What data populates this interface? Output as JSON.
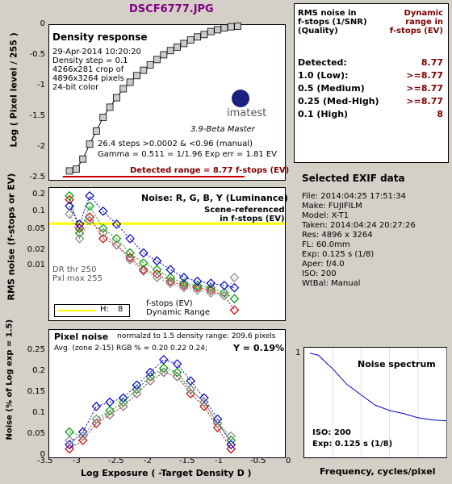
{
  "colors": {
    "accent": "#800080",
    "red": "#cc0000",
    "green": "#009900",
    "blue": "#0000cc",
    "gray": "#888888",
    "yellow": "#ffff00"
  },
  "header": {
    "title": "DSCF6777.JPG"
  },
  "density_panel": {
    "title": "Density response",
    "info": [
      "29-Apr-2014 10:20:20",
      "Density step = 0.1",
      "4266x281 crop of",
      "4896x3264 pixels",
      "24-bit color"
    ],
    "logo": "imatest",
    "version": "3.9-Beta  Master",
    "steps": "26.4 steps >0.0002 & <0.96 (manual)",
    "gamma": "Gamma = 0.511 = 1/1.96  Exp err = 1.81 EV",
    "detected": "Detected range = 8.77 f-stops (EV)",
    "ylabel": "Log ( Pixel level / 255 )",
    "yticks": [
      "0",
      "-0.5",
      "-1",
      "-1.5",
      "-2",
      "-2.5"
    ]
  },
  "summary": {
    "head_left": "RMS noise in\nf-stops (1/SNR)\n(Quality)",
    "head_right": "Dynamic\nrange in\nf-stops (EV)",
    "rows": [
      {
        "label": "Detected:",
        "value": "8.77"
      },
      {
        "label": "1.0   (Low):",
        "value": ">=8.77"
      },
      {
        "label": "0.5   (Medium)",
        "value": ">=8.77"
      },
      {
        "label": "0.25 (Med-High)",
        "value": ">=8.77"
      },
      {
        "label": "0.1   (High)",
        "value": "8"
      }
    ]
  },
  "noise_panel": {
    "title": "Noise: R, G, B, Y (Luminance)",
    "scene": "Scene-referenced\nin f-stops (EV)",
    "dr": "DR thr 250\nPxl max 255",
    "legend_h": "H:",
    "legend_val": "8",
    "legend_txt": "f-stops (EV)\nDynamic Range",
    "ylabel": "RMS noise (f-stops or EV)",
    "yticks": [
      "0.2",
      "0.1",
      "0.05",
      "0.02",
      "0.01"
    ]
  },
  "exif": {
    "title": "Selected EXIF data",
    "rows": [
      "File:  2014:04:25 17:51:34",
      "Make: FUJIFILM",
      "Model: X-T1",
      "Taken: 2014:04:24 20:27:26",
      "Res:   4896 x 3264",
      "FL:  60.0mm",
      "Exp:   0.125 s   (1/8)",
      "Aper:  f/4.0",
      "ISO:   200",
      "WtBal: Manual"
    ]
  },
  "pixel_panel": {
    "title": "Pixel noise",
    "norm": "normalzd to 1.5 density range: 209.6 pixels",
    "avg": "Avg. (zone 2-15) RGB % = 0.20  0.22  0.24;",
    "yval": "Y = 0.19%",
    "ylabel": "Noise (% of Log exp = 1.5)",
    "yticks": [
      "0.25",
      "0.2",
      "0.15",
      "0.1",
      "0.05",
      "0"
    ],
    "xticks": [
      "-3.5",
      "-3",
      "-2.5",
      "-2",
      "-1.5",
      "-1",
      "-0.5",
      "0"
    ],
    "xlabel": "Log Exposure ( -Target Density D )"
  },
  "spectrum_panel": {
    "title": "Noise spectrum",
    "ytick": "1",
    "iso": "ISO:    200",
    "exp": "Exp:    0.125 s   (1/8)",
    "xlabel": "Frequency, cycles/pixel"
  },
  "chart_data": [
    {
      "type": "line",
      "title": "Density response",
      "ylabel": "Log ( Pixel level / 255 )",
      "ylim": [
        -2.6,
        0
      ],
      "xlim": [
        -3.5,
        0
      ],
      "series": [
        {
          "x": [
            -3.2,
            -3.1,
            -3.0,
            -2.9,
            -2.8,
            -2.7,
            -2.6,
            -2.5,
            -2.4,
            -2.3,
            -2.2,
            -2.1,
            -2.0,
            -1.9,
            -1.8,
            -1.7,
            -1.6,
            -1.5,
            -1.4,
            -1.3,
            -1.2,
            -1.1,
            -1.0,
            -0.9,
            -0.8,
            -0.7
          ],
          "y": [
            -2.45,
            -2.42,
            -2.25,
            -2.0,
            -1.78,
            -1.55,
            -1.38,
            -1.22,
            -1.07,
            -0.96,
            -0.85,
            -0.76,
            -0.67,
            -0.58,
            -0.5,
            -0.43,
            -0.37,
            -0.31,
            -0.25,
            -0.2,
            -0.16,
            -0.11,
            -0.08,
            -0.05,
            -0.03,
            -0.02
          ]
        }
      ]
    },
    {
      "type": "scatter",
      "title": "Noise: R, G, B, Y (Luminance)",
      "ylabel": "RMS noise (f-stops or EV)",
      "scale": "log",
      "ylim": [
        0.006,
        0.25
      ],
      "xlim": [
        -3.5,
        0
      ],
      "series": [
        {
          "name": "R",
          "x": [
            -3.2,
            -3.05,
            -2.9,
            -2.7,
            -2.5,
            -2.3,
            -2.1,
            -1.9,
            -1.7,
            -1.5,
            -1.3,
            -1.1,
            -0.9,
            -0.75
          ],
          "y": [
            0.18,
            0.08,
            0.11,
            0.06,
            0.05,
            0.035,
            0.025,
            0.022,
            0.018,
            0.016,
            0.015,
            0.014,
            0.012,
            0.008
          ]
        },
        {
          "name": "G",
          "x": [
            -3.2,
            -3.05,
            -2.9,
            -2.7,
            -2.5,
            -2.3,
            -2.1,
            -1.9,
            -1.7,
            -1.5,
            -1.3,
            -1.1,
            -0.9,
            -0.75
          ],
          "y": [
            0.2,
            0.07,
            0.15,
            0.08,
            0.06,
            0.04,
            0.03,
            0.025,
            0.02,
            0.017,
            0.016,
            0.015,
            0.013,
            0.011
          ]
        },
        {
          "name": "B",
          "x": [
            -3.2,
            -3.05,
            -2.9,
            -2.7,
            -2.5,
            -2.3,
            -2.1,
            -1.9,
            -1.7,
            -1.5,
            -1.3,
            -1.1,
            -0.9,
            -0.75
          ],
          "y": [
            0.15,
            0.09,
            0.2,
            0.13,
            0.09,
            0.06,
            0.04,
            0.032,
            0.025,
            0.02,
            0.018,
            0.017,
            0.016,
            0.015
          ]
        },
        {
          "name": "Y",
          "x": [
            -3.2,
            -3.05,
            -2.9,
            -2.7,
            -2.5,
            -2.3,
            -2.1,
            -1.9,
            -1.7,
            -1.5,
            -1.3,
            -1.1,
            -0.9,
            -0.75
          ],
          "y": [
            0.12,
            0.06,
            0.1,
            0.07,
            0.05,
            0.033,
            0.024,
            0.02,
            0.017,
            0.015,
            0.014,
            0.013,
            0.012,
            0.02
          ]
        }
      ]
    },
    {
      "type": "scatter",
      "title": "Pixel noise",
      "ylabel": "Noise (% of Log exp = 1.5)",
      "xlabel": "Log Exposure ( -Target Density D )",
      "ylim": [
        0,
        0.3
      ],
      "xlim": [
        -3.5,
        0
      ],
      "series": [
        {
          "name": "R",
          "x": [
            -3.2,
            -3.0,
            -2.8,
            -2.6,
            -2.4,
            -2.2,
            -2.0,
            -1.8,
            -1.6,
            -1.4,
            -1.2,
            -1.0,
            -0.8
          ],
          "y": [
            0.02,
            0.04,
            0.08,
            0.1,
            0.12,
            0.15,
            0.18,
            0.2,
            0.19,
            0.15,
            0.12,
            0.07,
            0.02
          ]
        },
        {
          "name": "G",
          "x": [
            -3.2,
            -3.0,
            -2.8,
            -2.6,
            -2.4,
            -2.2,
            -2.0,
            -1.8,
            -1.6,
            -1.4,
            -1.2,
            -1.0,
            -0.8
          ],
          "y": [
            0.06,
            0.05,
            0.09,
            0.11,
            0.13,
            0.16,
            0.19,
            0.21,
            0.2,
            0.16,
            0.13,
            0.08,
            0.04
          ]
        },
        {
          "name": "B",
          "x": [
            -3.2,
            -3.0,
            -2.8,
            -2.6,
            -2.4,
            -2.2,
            -2.0,
            -1.8,
            -1.6,
            -1.4,
            -1.2,
            -1.0,
            -0.8
          ],
          "y": [
            0.03,
            0.06,
            0.12,
            0.13,
            0.14,
            0.17,
            0.2,
            0.23,
            0.22,
            0.18,
            0.14,
            0.09,
            0.03
          ]
        },
        {
          "name": "Y",
          "x": [
            -3.2,
            -3.0,
            -2.8,
            -2.6,
            -2.4,
            -2.2,
            -2.0,
            -1.8,
            -1.6,
            -1.4,
            -1.2,
            -1.0,
            -0.8
          ],
          "y": [
            0.04,
            0.05,
            0.09,
            0.1,
            0.12,
            0.15,
            0.18,
            0.2,
            0.19,
            0.16,
            0.13,
            0.08,
            0.05
          ]
        }
      ]
    },
    {
      "type": "line",
      "title": "Noise spectrum",
      "xlabel": "Frequency, cycles/pixel",
      "ylim": [
        0,
        1
      ],
      "xlim": [
        0,
        0.5
      ],
      "series": [
        {
          "x": [
            0.02,
            0.05,
            0.08,
            0.1,
            0.15,
            0.2,
            0.25,
            0.3,
            0.35,
            0.4,
            0.45,
            0.5
          ],
          "y": [
            1.0,
            0.98,
            0.9,
            0.85,
            0.7,
            0.6,
            0.5,
            0.45,
            0.42,
            0.38,
            0.36,
            0.35
          ]
        }
      ]
    }
  ]
}
